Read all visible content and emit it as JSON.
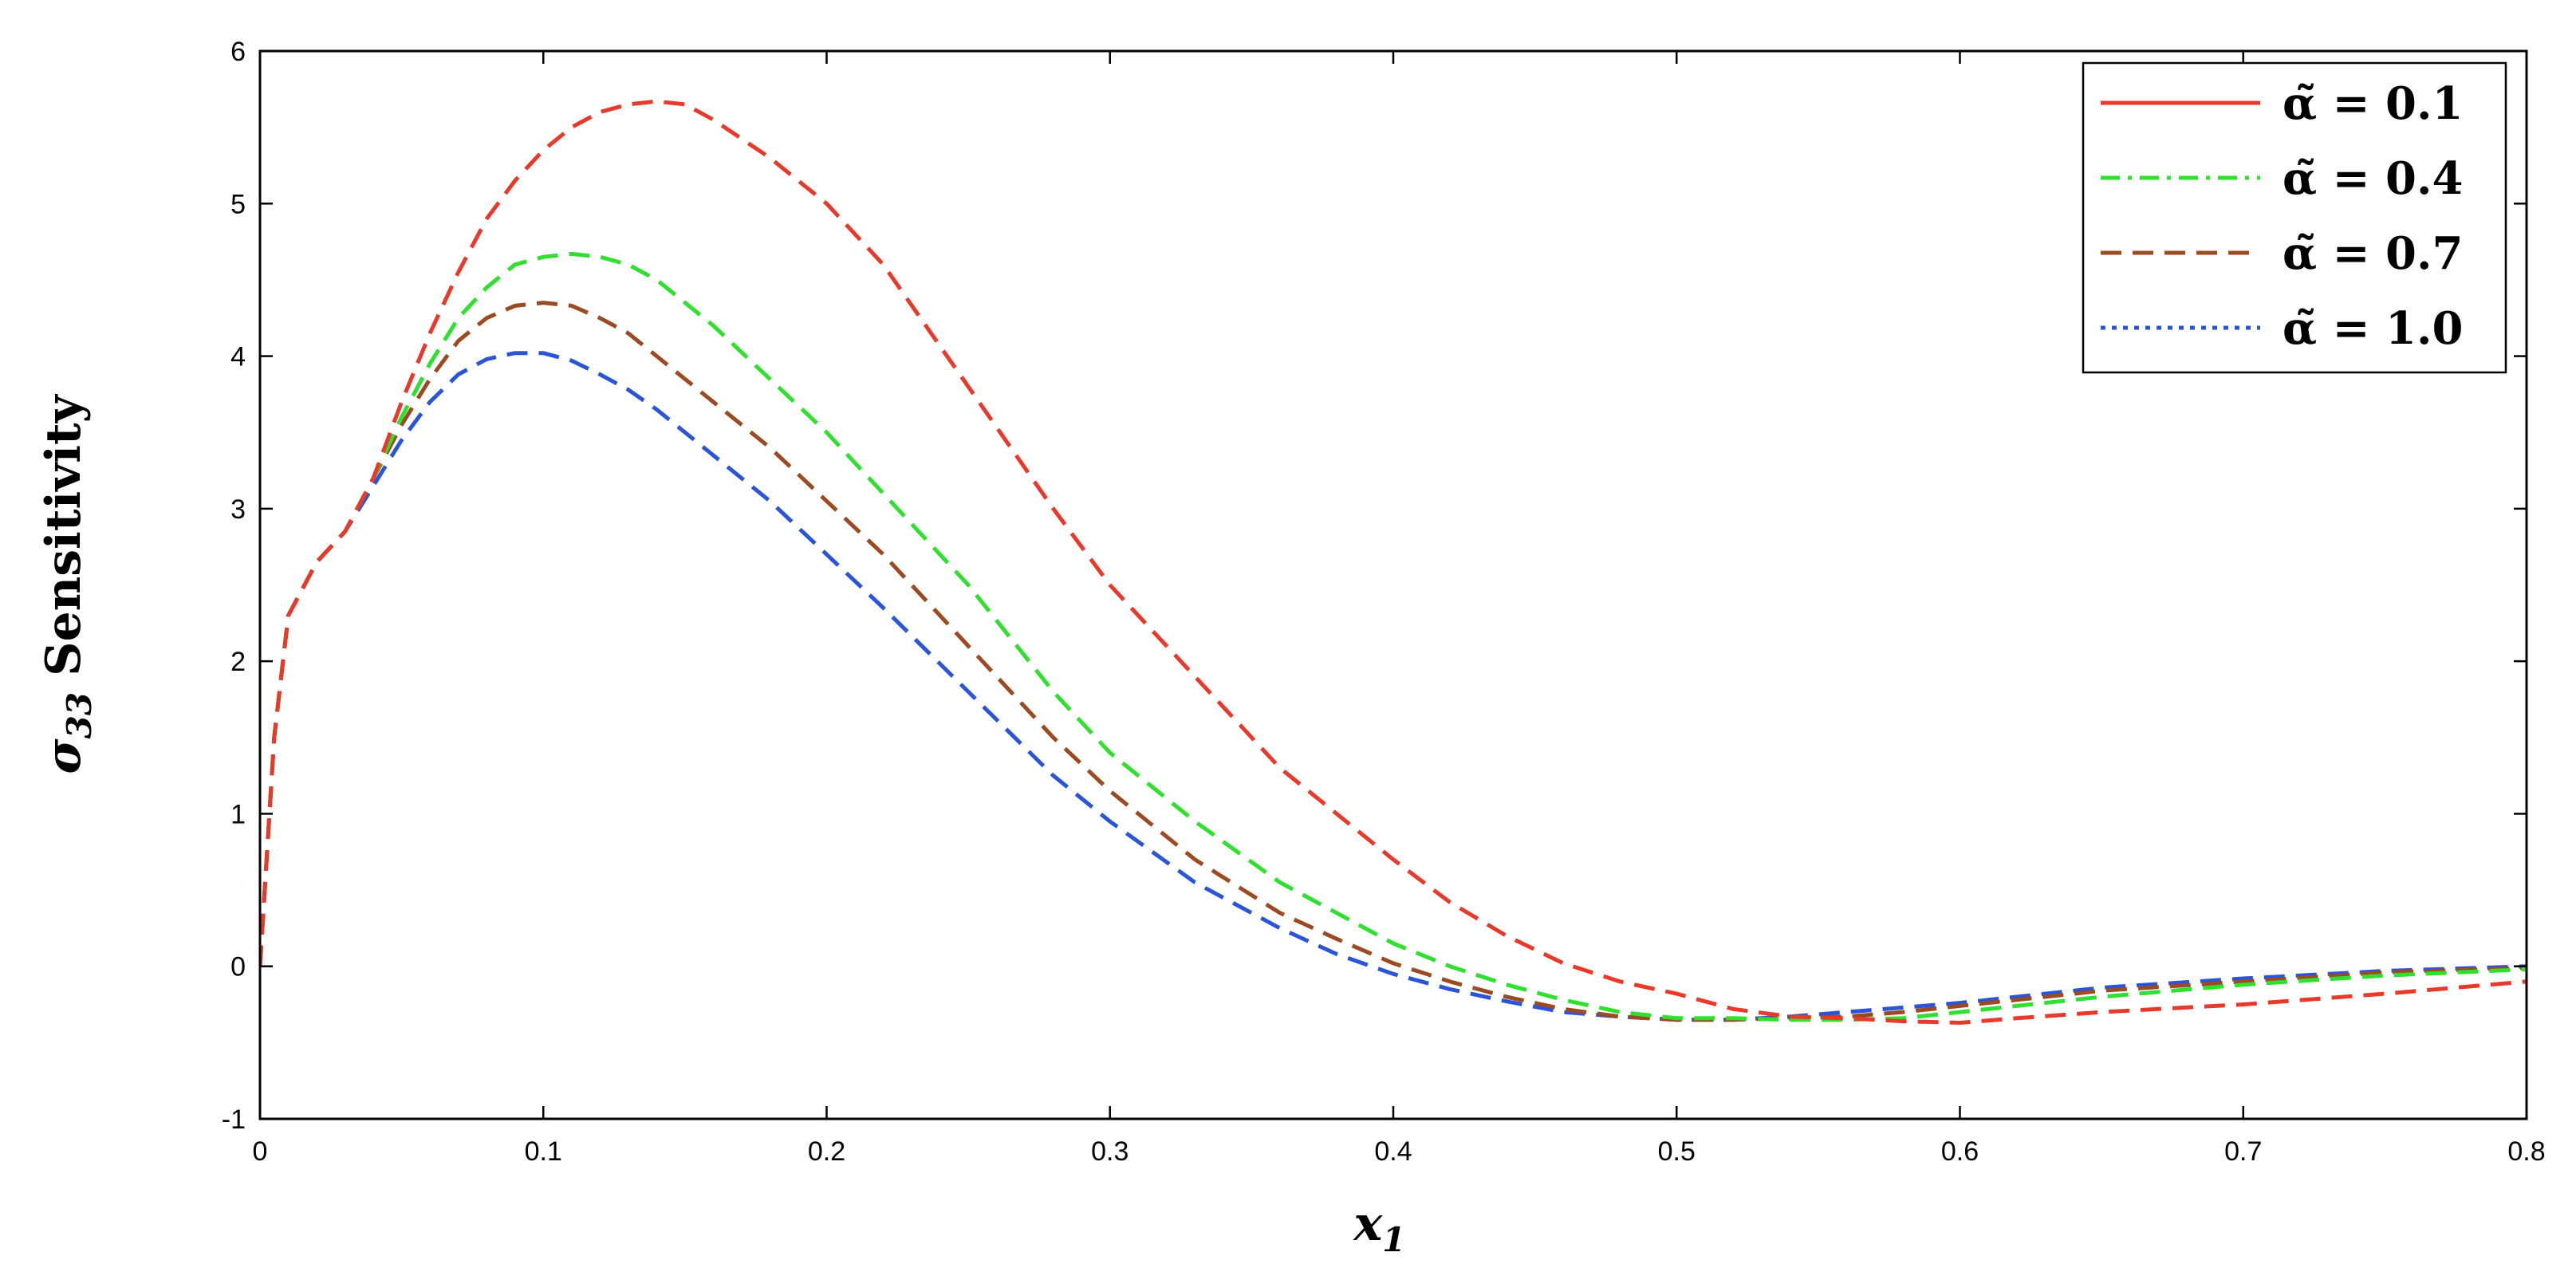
{
  "chart_data": {
    "type": "line",
    "xlabel": "x",
    "xlabel_sub": "1",
    "ylabel": "σ",
    "ylabel_sub": "33",
    "ylabel_suffix": "Sensitivity",
    "xlim": [
      0,
      0.8
    ],
    "ylim": [
      -1,
      6
    ],
    "xticks": [
      "0",
      "0.1",
      "0.2",
      "0.3",
      "0.4",
      "0.5",
      "0.6",
      "0.7",
      "0.8"
    ],
    "yticks": [
      "-1",
      "0",
      "1",
      "2",
      "3",
      "4",
      "5",
      "6"
    ],
    "grid": false,
    "legend_position": "top-right",
    "series": [
      {
        "name": "α̃ = 0.1",
        "color": "#e8392b",
        "legend_dash": "solid",
        "dash": "dashed",
        "x": [
          0,
          0.005,
          0.01,
          0.02,
          0.03,
          0.04,
          0.05,
          0.06,
          0.07,
          0.08,
          0.09,
          0.1,
          0.11,
          0.12,
          0.13,
          0.14,
          0.15,
          0.16,
          0.18,
          0.2,
          0.22,
          0.25,
          0.28,
          0.3,
          0.33,
          0.36,
          0.38,
          0.4,
          0.42,
          0.44,
          0.46,
          0.48,
          0.5,
          0.52,
          0.54,
          0.56,
          0.58,
          0.6,
          0.62,
          0.65,
          0.7,
          0.75,
          0.8
        ],
        "y": [
          0,
          1.5,
          2.3,
          2.65,
          2.85,
          3.2,
          3.7,
          4.15,
          4.55,
          4.9,
          5.15,
          5.35,
          5.5,
          5.6,
          5.65,
          5.67,
          5.65,
          5.55,
          5.3,
          5.0,
          4.6,
          3.8,
          3.0,
          2.5,
          1.9,
          1.3,
          1.0,
          0.7,
          0.42,
          0.2,
          0.02,
          -0.1,
          -0.18,
          -0.28,
          -0.33,
          -0.34,
          -0.36,
          -0.37,
          -0.34,
          -0.3,
          -0.25,
          -0.18,
          -0.1
        ]
      },
      {
        "name": "α̃ = 0.4",
        "color": "#2fe02f",
        "legend_dash": "dashdot",
        "dash": "dashed",
        "x": [
          0,
          0.005,
          0.01,
          0.02,
          0.03,
          0.04,
          0.05,
          0.06,
          0.07,
          0.08,
          0.09,
          0.1,
          0.11,
          0.12,
          0.13,
          0.14,
          0.15,
          0.16,
          0.18,
          0.2,
          0.22,
          0.25,
          0.28,
          0.3,
          0.33,
          0.36,
          0.38,
          0.4,
          0.42,
          0.44,
          0.46,
          0.48,
          0.5,
          0.52,
          0.54,
          0.56,
          0.58,
          0.6,
          0.62,
          0.65,
          0.7,
          0.75,
          0.8
        ],
        "y": [
          0,
          1.5,
          2.3,
          2.65,
          2.85,
          3.2,
          3.6,
          3.95,
          4.25,
          4.45,
          4.6,
          4.65,
          4.67,
          4.65,
          4.6,
          4.5,
          4.35,
          4.2,
          3.85,
          3.5,
          3.1,
          2.5,
          1.8,
          1.4,
          0.95,
          0.55,
          0.35,
          0.15,
          0.0,
          -0.12,
          -0.22,
          -0.3,
          -0.34,
          -0.34,
          -0.35,
          -0.35,
          -0.34,
          -0.3,
          -0.26,
          -0.2,
          -0.12,
          -0.06,
          -0.02
        ]
      },
      {
        "name": "α̃ = 0.7",
        "color": "#9b4a22",
        "legend_dash": "dashed",
        "dash": "dashed",
        "x": [
          0,
          0.005,
          0.01,
          0.02,
          0.03,
          0.04,
          0.05,
          0.06,
          0.07,
          0.08,
          0.09,
          0.1,
          0.11,
          0.12,
          0.13,
          0.14,
          0.15,
          0.16,
          0.18,
          0.2,
          0.22,
          0.25,
          0.28,
          0.3,
          0.33,
          0.36,
          0.38,
          0.4,
          0.42,
          0.44,
          0.46,
          0.48,
          0.5,
          0.52,
          0.54,
          0.56,
          0.58,
          0.6,
          0.62,
          0.65,
          0.7,
          0.75,
          0.8
        ],
        "y": [
          0,
          1.5,
          2.3,
          2.65,
          2.85,
          3.2,
          3.55,
          3.85,
          4.1,
          4.25,
          4.33,
          4.35,
          4.33,
          4.25,
          4.15,
          4.0,
          3.85,
          3.7,
          3.4,
          3.05,
          2.7,
          2.1,
          1.5,
          1.15,
          0.7,
          0.35,
          0.18,
          0.02,
          -0.1,
          -0.2,
          -0.28,
          -0.33,
          -0.35,
          -0.35,
          -0.34,
          -0.33,
          -0.3,
          -0.26,
          -0.22,
          -0.16,
          -0.1,
          -0.04,
          -0.01
        ]
      },
      {
        "name": "α̃ = 1.0",
        "color": "#2a55d8",
        "legend_dash": "dotted",
        "dash": "dashed",
        "x": [
          0,
          0.005,
          0.01,
          0.02,
          0.03,
          0.04,
          0.05,
          0.06,
          0.07,
          0.08,
          0.09,
          0.1,
          0.11,
          0.12,
          0.13,
          0.14,
          0.15,
          0.16,
          0.18,
          0.2,
          0.22,
          0.25,
          0.28,
          0.3,
          0.33,
          0.36,
          0.38,
          0.4,
          0.42,
          0.44,
          0.46,
          0.48,
          0.5,
          0.52,
          0.54,
          0.56,
          0.58,
          0.6,
          0.62,
          0.65,
          0.7,
          0.75,
          0.8
        ],
        "y": [
          0,
          1.5,
          2.3,
          2.65,
          2.85,
          3.15,
          3.45,
          3.7,
          3.88,
          3.98,
          4.02,
          4.02,
          3.97,
          3.88,
          3.78,
          3.65,
          3.5,
          3.35,
          3.05,
          2.7,
          2.35,
          1.8,
          1.25,
          0.95,
          0.55,
          0.25,
          0.08,
          -0.05,
          -0.15,
          -0.23,
          -0.3,
          -0.33,
          -0.35,
          -0.35,
          -0.33,
          -0.3,
          -0.27,
          -0.24,
          -0.2,
          -0.14,
          -0.08,
          -0.03,
          0.0
        ]
      }
    ]
  }
}
